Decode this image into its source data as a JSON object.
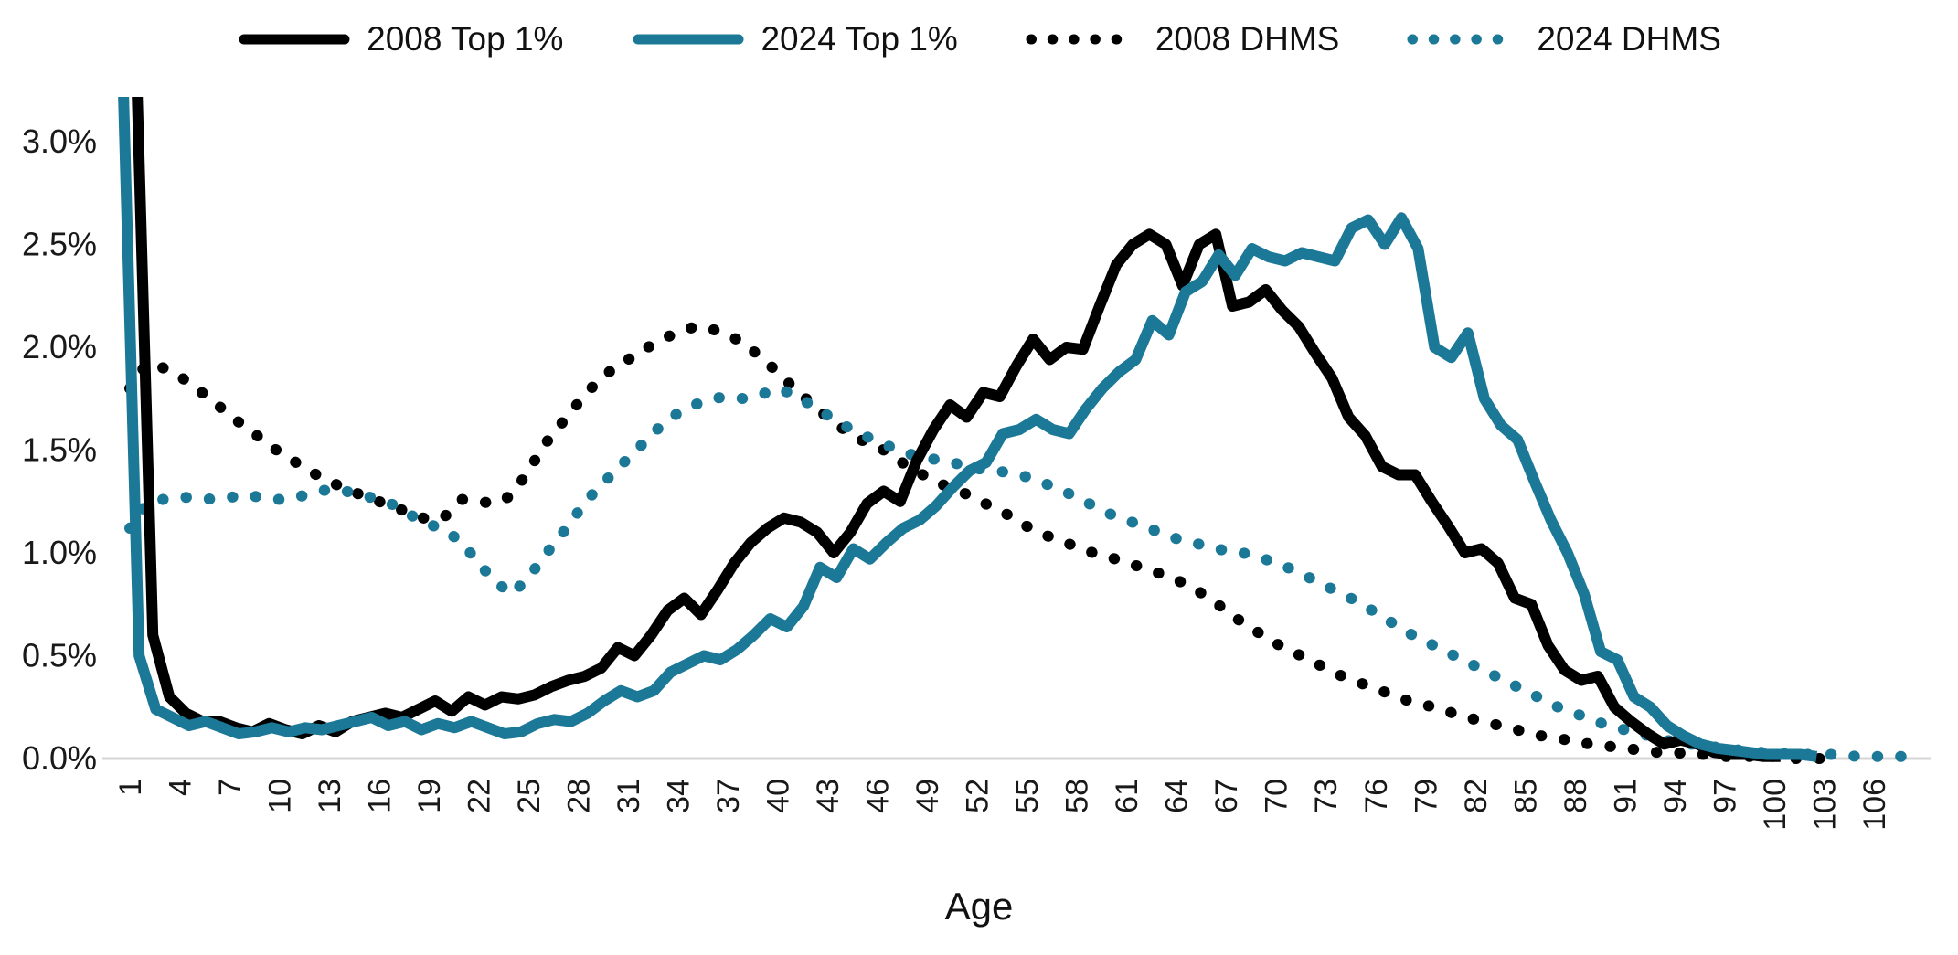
{
  "chart_data": {
    "type": "line",
    "title": "",
    "xlabel": "Age",
    "ylabel": "",
    "ylim": [
      0.0,
      3.0
    ],
    "grid": false,
    "legend_position": "top",
    "axis_line_color": "#d6d6d6",
    "text_color": "#191919",
    "teal_color": "#1b7897",
    "black_color": "#000000",
    "y_ticks": [
      {
        "label": "0.0%",
        "value": 0.0
      },
      {
        "label": "0.5%",
        "value": 0.5
      },
      {
        "label": "1.0%",
        "value": 1.0
      },
      {
        "label": "1.5%",
        "value": 1.5
      },
      {
        "label": "2.0%",
        "value": 2.0
      },
      {
        "label": "2.5%",
        "value": 2.5
      },
      {
        "label": "3.0%",
        "value": 3.0
      }
    ],
    "x_ticks": [
      1,
      4,
      7,
      10,
      13,
      16,
      19,
      22,
      25,
      28,
      31,
      34,
      37,
      40,
      43,
      46,
      49,
      52,
      55,
      58,
      61,
      64,
      67,
      70,
      73,
      76,
      79,
      82,
      85,
      88,
      91,
      94,
      97,
      100,
      103,
      106
    ],
    "ages": [
      1,
      2,
      3,
      4,
      5,
      6,
      7,
      8,
      9,
      10,
      11,
      12,
      13,
      14,
      15,
      16,
      17,
      18,
      19,
      20,
      21,
      22,
      23,
      24,
      25,
      26,
      27,
      28,
      29,
      30,
      31,
      32,
      33,
      34,
      35,
      36,
      37,
      38,
      39,
      40,
      41,
      42,
      43,
      44,
      45,
      46,
      47,
      48,
      49,
      50,
      51,
      52,
      53,
      54,
      55,
      56,
      57,
      58,
      59,
      60,
      61,
      62,
      63,
      64,
      65,
      66,
      67,
      68,
      69,
      70,
      71,
      72,
      73,
      74,
      75,
      76,
      77,
      78,
      79,
      80,
      81,
      82,
      83,
      84,
      85,
      86,
      87,
      88,
      89,
      90,
      91,
      92,
      93,
      94,
      95,
      96,
      97,
      98,
      99,
      100,
      101,
      102,
      103,
      104,
      105,
      106,
      107,
      108,
      109,
      110
    ],
    "values_unit": "percent",
    "note": "Age-1 values of both solid series exceed the visible axis maximum and are clipped at the plot top (stored as 3.4)",
    "series": [
      {
        "name": "2008 Top 1%",
        "style": "solid",
        "color": "#000000",
        "values": [
          3.4,
          0.6,
          0.3,
          0.22,
          0.18,
          0.18,
          0.15,
          0.13,
          0.17,
          0.14,
          0.12,
          0.16,
          0.13,
          0.18,
          0.2,
          0.22,
          0.2,
          0.24,
          0.28,
          0.23,
          0.3,
          0.26,
          0.3,
          0.29,
          0.31,
          0.35,
          0.38,
          0.4,
          0.44,
          0.54,
          0.5,
          0.6,
          0.72,
          0.78,
          0.7,
          0.82,
          0.95,
          1.05,
          1.12,
          1.17,
          1.15,
          1.1,
          1.0,
          1.1,
          1.24,
          1.3,
          1.25,
          1.45,
          1.6,
          1.72,
          1.66,
          1.78,
          1.76,
          1.91,
          2.04,
          1.94,
          2.0,
          1.99,
          2.2,
          2.4,
          2.5,
          2.55,
          2.5,
          2.3,
          2.5,
          2.55,
          2.2,
          2.22,
          2.28,
          2.18,
          2.1,
          1.97,
          1.85,
          1.66,
          1.57,
          1.42,
          1.38,
          1.38,
          1.25,
          1.13,
          1.0,
          1.02,
          0.95,
          0.78,
          0.75,
          0.55,
          0.43,
          0.38,
          0.4,
          0.25,
          0.18,
          0.12,
          0.07,
          0.09,
          0.07,
          0.03,
          0.02,
          0.02,
          0.01,
          0.01,
          null,
          null,
          null,
          null,
          null,
          null,
          null,
          null,
          null,
          null
        ]
      },
      {
        "name": "2024 Top 1%",
        "style": "solid",
        "color": "#1b7897",
        "values": [
          3.4,
          0.5,
          0.24,
          0.2,
          0.16,
          0.18,
          0.15,
          0.12,
          0.13,
          0.15,
          0.13,
          0.15,
          0.14,
          0.16,
          0.18,
          0.2,
          0.16,
          0.18,
          0.14,
          0.17,
          0.15,
          0.18,
          0.15,
          0.12,
          0.13,
          0.17,
          0.19,
          0.18,
          0.22,
          0.28,
          0.33,
          0.3,
          0.33,
          0.42,
          0.46,
          0.5,
          0.48,
          0.53,
          0.6,
          0.68,
          0.64,
          0.74,
          0.93,
          0.88,
          1.02,
          0.97,
          1.05,
          1.12,
          1.16,
          1.23,
          1.32,
          1.4,
          1.44,
          1.58,
          1.6,
          1.65,
          1.6,
          1.58,
          1.7,
          1.8,
          1.88,
          1.94,
          2.13,
          2.06,
          2.27,
          2.32,
          2.45,
          2.35,
          2.48,
          2.44,
          2.42,
          2.46,
          2.44,
          2.42,
          2.58,
          2.62,
          2.5,
          2.63,
          2.48,
          2.0,
          1.95,
          2.07,
          1.75,
          1.62,
          1.55,
          1.35,
          1.16,
          1.0,
          0.8,
          0.52,
          0.48,
          0.3,
          0.25,
          0.16,
          0.11,
          0.07,
          0.05,
          0.04,
          0.03,
          0.02,
          0.02,
          0.02,
          0.01,
          null,
          null,
          null,
          null,
          null,
          null,
          null
        ]
      },
      {
        "name": "2008 DHMS",
        "style": "dotted",
        "color": "#000000",
        "values": [
          1.8,
          1.92,
          1.9,
          1.86,
          1.8,
          1.74,
          1.67,
          1.61,
          1.55,
          1.49,
          1.44,
          1.39,
          1.35,
          1.31,
          1.28,
          1.25,
          1.22,
          1.19,
          1.16,
          1.18,
          1.26,
          1.25,
          1.24,
          1.28,
          1.4,
          1.53,
          1.63,
          1.73,
          1.82,
          1.89,
          1.94,
          1.99,
          2.04,
          2.07,
          2.1,
          2.09,
          2.06,
          2.02,
          1.95,
          1.88,
          1.8,
          1.73,
          1.66,
          1.6,
          1.55,
          1.52,
          1.47,
          1.41,
          1.37,
          1.33,
          1.3,
          1.26,
          1.22,
          1.18,
          1.13,
          1.09,
          1.06,
          1.03,
          1.0,
          0.98,
          0.95,
          0.93,
          0.9,
          0.87,
          0.83,
          0.78,
          0.72,
          0.66,
          0.61,
          0.56,
          0.52,
          0.48,
          0.44,
          0.4,
          0.37,
          0.34,
          0.31,
          0.28,
          0.26,
          0.24,
          0.21,
          0.19,
          0.17,
          0.15,
          0.13,
          0.11,
          0.1,
          0.08,
          0.07,
          0.06,
          0.05,
          0.04,
          0.03,
          0.03,
          0.02,
          0.02,
          0.01,
          0.01,
          0.01,
          0.01,
          0.0,
          0.0,
          0.0,
          null,
          null,
          null,
          null,
          null,
          null,
          null
        ]
      },
      {
        "name": "2024 DHMS",
        "style": "dotted",
        "color": "#1b7897",
        "values": [
          1.12,
          1.24,
          1.26,
          1.27,
          1.27,
          1.26,
          1.27,
          1.28,
          1.27,
          1.26,
          1.27,
          1.29,
          1.31,
          1.3,
          1.28,
          1.26,
          1.23,
          1.18,
          1.14,
          1.11,
          1.05,
          0.95,
          0.86,
          0.8,
          0.88,
          0.99,
          1.09,
          1.2,
          1.3,
          1.38,
          1.46,
          1.54,
          1.62,
          1.68,
          1.72,
          1.75,
          1.76,
          1.75,
          1.77,
          1.8,
          1.77,
          1.72,
          1.67,
          1.62,
          1.58,
          1.54,
          1.51,
          1.48,
          1.46,
          1.45,
          1.43,
          1.41,
          1.4,
          1.39,
          1.37,
          1.34,
          1.31,
          1.27,
          1.23,
          1.19,
          1.16,
          1.13,
          1.1,
          1.07,
          1.05,
          1.03,
          1.01,
          1.0,
          0.98,
          0.95,
          0.92,
          0.88,
          0.84,
          0.8,
          0.76,
          0.71,
          0.66,
          0.61,
          0.57,
          0.53,
          0.49,
          0.45,
          0.41,
          0.37,
          0.33,
          0.29,
          0.25,
          0.22,
          0.19,
          0.16,
          0.14,
          0.12,
          0.1,
          0.08,
          0.07,
          0.06,
          0.05,
          0.04,
          0.03,
          0.03,
          0.02,
          0.02,
          0.02,
          0.02,
          0.01,
          0.01,
          0.01,
          0.01,
          null,
          null
        ]
      }
    ]
  }
}
